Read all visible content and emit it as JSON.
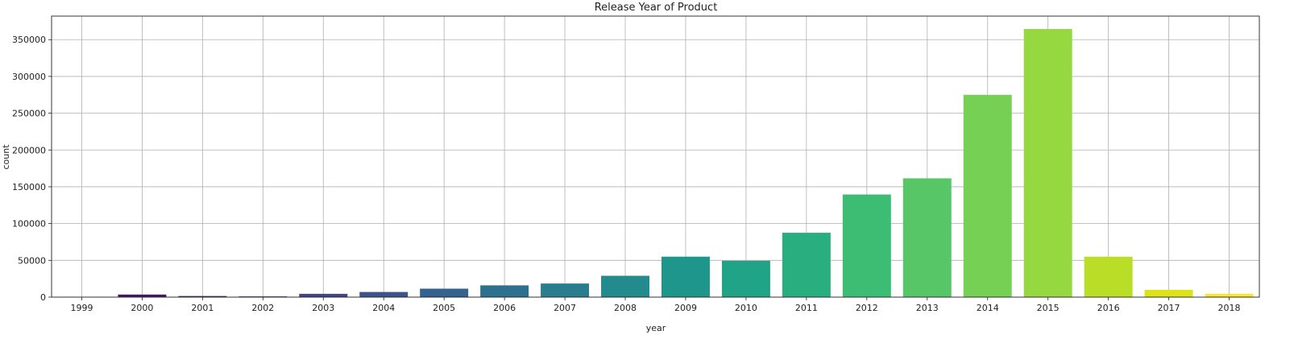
{
  "chart_data": {
    "type": "bar",
    "title": "Release Year of Product",
    "xlabel": "year",
    "ylabel": "count",
    "categories": [
      "1999",
      "2000",
      "2001",
      "2002",
      "2003",
      "2004",
      "2005",
      "2006",
      "2007",
      "2008",
      "2009",
      "2010",
      "2011",
      "2012",
      "2013",
      "2014",
      "2015",
      "2016",
      "2017",
      "2018"
    ],
    "values": [
      200,
      3500,
      1500,
      1000,
      4500,
      7000,
      11500,
      16000,
      18500,
      29000,
      55000,
      49500,
      87500,
      139500,
      161500,
      275000,
      364500,
      55000,
      10000,
      4500
    ],
    "colors": [
      "#440154",
      "#481467",
      "#482576",
      "#453781",
      "#3f4788",
      "#39558c",
      "#32648e",
      "#2d718e",
      "#287d8e",
      "#238a8d",
      "#1f968b",
      "#20a386",
      "#29af7f",
      "#3dbc74",
      "#56c667",
      "#75d054",
      "#95d840",
      "#bade28",
      "#dde318",
      "#fde725"
    ],
    "ylim": [
      0,
      382000
    ],
    "yticks": [
      0,
      50000,
      100000,
      150000,
      200000,
      250000,
      300000,
      350000
    ],
    "grid": true
  }
}
